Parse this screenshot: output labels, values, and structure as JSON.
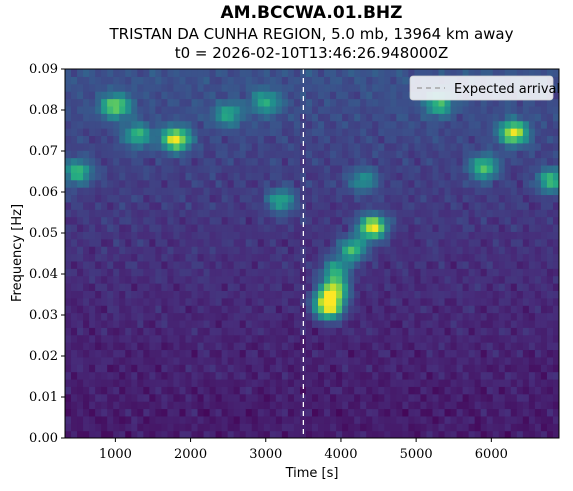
{
  "header": {
    "title": "AM.BCCWA.01.BHZ",
    "subtitle": "TRISTAN DA CUNHA REGION, 5.0 mb, 13964 km away",
    "t0": "t0 = 2026-02-10T13:46:26.948000Z"
  },
  "chart_data": {
    "type": "heatmap",
    "colormap": "viridis",
    "xlabel": "Time [s]",
    "ylabel": "Frequency [Hz]",
    "xlim": [
      330,
      6900
    ],
    "ylim": [
      0.0,
      0.09
    ],
    "xticks": [
      1000,
      2000,
      3000,
      4000,
      5000,
      6000
    ],
    "yticks": [
      "0.00",
      "0.01",
      "0.02",
      "0.03",
      "0.04",
      "0.05",
      "0.06",
      "0.07",
      "0.08",
      "0.09"
    ],
    "grid": false,
    "legend": {
      "position": "top-right",
      "entries": [
        "Expected arrival"
      ]
    },
    "expected_arrival_time": 3500,
    "expected_arrival_color": "#ffffff",
    "hotspots": [
      {
        "t": 4420,
        "f": 0.0515,
        "intensity": 0.85
      },
      {
        "t": 4150,
        "f": 0.046,
        "intensity": 0.55
      },
      {
        "t": 3930,
        "f": 0.041,
        "intensity": 0.45
      },
      {
        "t": 3920,
        "f": 0.0365,
        "intensity": 0.65
      },
      {
        "t": 3820,
        "f": 0.0335,
        "intensity": 0.6
      },
      {
        "t": 3850,
        "f": 0.0315,
        "intensity": 0.55
      },
      {
        "t": 1800,
        "f": 0.073,
        "intensity": 0.8
      },
      {
        "t": 6300,
        "f": 0.0745,
        "intensity": 0.75
      },
      {
        "t": 1000,
        "f": 0.081,
        "intensity": 0.6
      },
      {
        "t": 500,
        "f": 0.065,
        "intensity": 0.5
      },
      {
        "t": 1300,
        "f": 0.074,
        "intensity": 0.45
      },
      {
        "t": 3000,
        "f": 0.082,
        "intensity": 0.4
      },
      {
        "t": 2500,
        "f": 0.079,
        "intensity": 0.4
      },
      {
        "t": 5900,
        "f": 0.066,
        "intensity": 0.55
      },
      {
        "t": 5300,
        "f": 0.0815,
        "intensity": 0.45
      },
      {
        "t": 3200,
        "f": 0.058,
        "intensity": 0.45
      },
      {
        "t": 6800,
        "f": 0.063,
        "intensity": 0.5
      },
      {
        "t": 4300,
        "f": 0.063,
        "intensity": 0.35
      }
    ]
  }
}
